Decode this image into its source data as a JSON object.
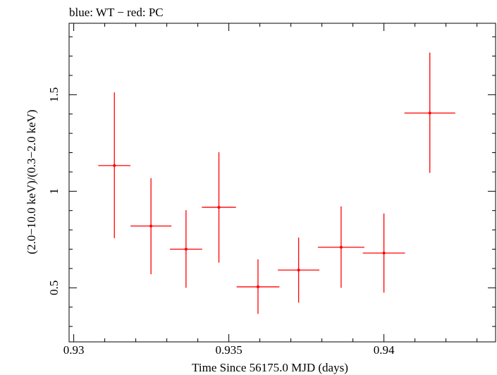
{
  "chart_data": {
    "type": "scatter",
    "title": "blue: WT − red: PC",
    "xlabel": "Time Since 56175.0 MJD (days)",
    "ylabel": "(2.0−10.0 keV)/(0.3−2.0 keV)",
    "xlim": [
      0.92985,
      0.9436
    ],
    "ylim": [
      0.22,
      1.87
    ],
    "x_ticks": [
      {
        "value": 0.93,
        "label": "0.93"
      },
      {
        "value": 0.935,
        "label": "0.935"
      },
      {
        "value": 0.94,
        "label": "0.94"
      }
    ],
    "y_ticks": [
      {
        "value": 0.5,
        "label": "0.5"
      },
      {
        "value": 1.0,
        "label": "1"
      },
      {
        "value": 1.5,
        "label": "1.5"
      }
    ],
    "series": [
      {
        "name": "PC",
        "color": "#ff0000",
        "points": [
          {
            "x": 0.93131,
            "xerr": 0.00052,
            "y": 1.133,
            "ylo": 0.757,
            "yhi": 1.512
          },
          {
            "x": 0.93249,
            "xerr": 0.00066,
            "y": 0.82,
            "ylo": 0.57,
            "yhi": 1.068
          },
          {
            "x": 0.93362,
            "xerr": 0.00052,
            "y": 0.7,
            "ylo": 0.5,
            "yhi": 0.902
          },
          {
            "x": 0.93468,
            "xerr": 0.00055,
            "y": 0.917,
            "ylo": 0.63,
            "yhi": 1.202
          },
          {
            "x": 0.93594,
            "xerr": 0.00069,
            "y": 0.505,
            "ylo": 0.365,
            "yhi": 0.647
          },
          {
            "x": 0.93725,
            "xerr": 0.00067,
            "y": 0.592,
            "ylo": 0.423,
            "yhi": 0.76
          },
          {
            "x": 0.93862,
            "xerr": 0.00075,
            "y": 0.71,
            "ylo": 0.5,
            "yhi": 0.922
          },
          {
            "x": 0.94,
            "xerr": 0.00068,
            "y": 0.68,
            "ylo": 0.475,
            "yhi": 0.885
          },
          {
            "x": 0.94148,
            "xerr": 0.00082,
            "y": 1.405,
            "ylo": 1.095,
            "yhi": 1.718
          }
        ]
      }
    ]
  }
}
